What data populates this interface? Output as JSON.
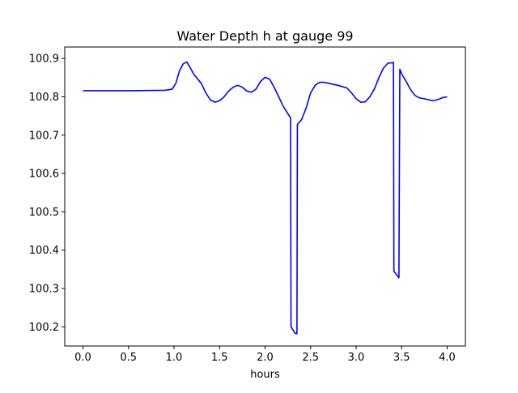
{
  "chart_data": {
    "type": "line",
    "title": "Water Depth h at gauge 99",
    "xlabel": "hours",
    "ylabel": "",
    "xlim": [
      -0.2,
      4.2
    ],
    "ylim": [
      100.15,
      100.93
    ],
    "x_ticks": [
      0.0,
      0.5,
      1.0,
      1.5,
      2.0,
      2.5,
      3.0,
      3.5,
      4.0
    ],
    "x_tick_labels": [
      "0.0",
      "0.5",
      "1.0",
      "1.5",
      "2.0",
      "2.5",
      "3.0",
      "3.5",
      "4.0"
    ],
    "y_ticks": [
      100.2,
      100.3,
      100.4,
      100.5,
      100.6,
      100.7,
      100.8,
      100.9
    ],
    "y_tick_labels": [
      "100.2",
      "100.3",
      "100.4",
      "100.5",
      "100.6",
      "100.7",
      "100.8",
      "100.9"
    ],
    "grid": false,
    "legend": "none",
    "series": [
      {
        "color": "#0000ff",
        "x": [
          0.0,
          0.5,
          0.9,
          0.98,
          1.02,
          1.06,
          1.1,
          1.14,
          1.18,
          1.22,
          1.3,
          1.35,
          1.4,
          1.45,
          1.5,
          1.55,
          1.6,
          1.65,
          1.7,
          1.75,
          1.8,
          1.85,
          1.9,
          1.95,
          2.0,
          2.05,
          2.1,
          2.15,
          2.2,
          2.28,
          2.285,
          2.33,
          2.35,
          2.355,
          2.4,
          2.45,
          2.5,
          2.55,
          2.6,
          2.65,
          2.7,
          2.8,
          2.9,
          2.95,
          3.0,
          3.05,
          3.1,
          3.15,
          3.2,
          3.25,
          3.3,
          3.35,
          3.4,
          3.41,
          3.415,
          3.47,
          3.48,
          3.5,
          3.55,
          3.6,
          3.65,
          3.7,
          3.75,
          3.8,
          3.85,
          3.9,
          3.95,
          4.0
        ],
        "y": [
          100.816,
          100.816,
          100.817,
          100.82,
          100.835,
          100.868,
          100.886,
          100.891,
          100.875,
          100.858,
          100.835,
          100.81,
          100.792,
          100.786,
          100.79,
          100.8,
          100.815,
          100.825,
          100.83,
          100.825,
          100.815,
          100.812,
          100.82,
          100.84,
          100.851,
          100.846,
          100.825,
          100.8,
          100.775,
          100.745,
          100.2,
          100.183,
          100.182,
          100.728,
          100.74,
          100.77,
          100.81,
          100.83,
          100.838,
          100.838,
          100.835,
          100.83,
          100.823,
          100.81,
          100.795,
          100.786,
          100.787,
          100.8,
          100.82,
          100.85,
          100.875,
          100.888,
          100.889,
          100.89,
          100.345,
          100.328,
          100.872,
          100.86,
          100.84,
          100.818,
          100.803,
          100.797,
          100.795,
          100.792,
          100.79,
          100.793,
          100.798,
          100.8
        ]
      }
    ]
  }
}
